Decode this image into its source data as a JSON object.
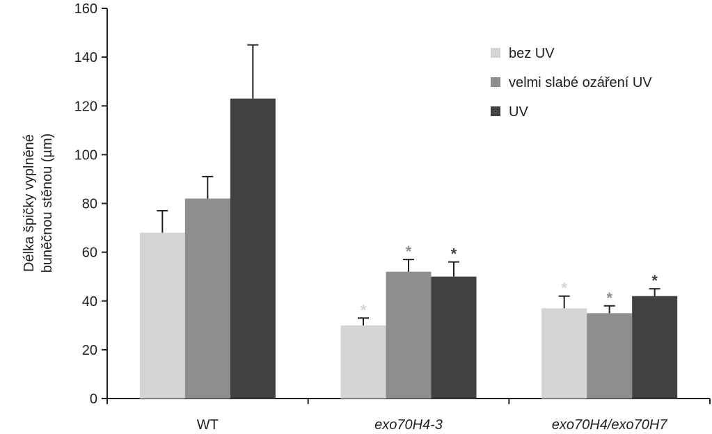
{
  "chart_data": {
    "type": "bar",
    "ylabel_lines": [
      "Délka špičky vyplněné",
      "buněčnou stěnou (µm)"
    ],
    "ylim": [
      0,
      160
    ],
    "yticks": [
      0,
      20,
      40,
      60,
      80,
      100,
      120,
      140,
      160
    ],
    "categories": [
      "WT",
      "exo70H4-3",
      "exo70H4/exo70H7"
    ],
    "category_italic": [
      false,
      true,
      true
    ],
    "legend_position": "top-right",
    "series": [
      {
        "name": "bez UV",
        "color": "#d4d4d4",
        "values": [
          68,
          30,
          37
        ],
        "errors": [
          9,
          3,
          5
        ],
        "significance": [
          "",
          "*",
          "*"
        ]
      },
      {
        "name": "velmi slabé ozáření UV",
        "color": "#8e8e8e",
        "values": [
          82,
          52,
          35
        ],
        "errors": [
          9,
          5,
          3
        ],
        "significance": [
          "",
          "*",
          "*"
        ]
      },
      {
        "name": "UV",
        "color": "#424041",
        "values": [
          123,
          50,
          42
        ],
        "errors": [
          22,
          6,
          3
        ],
        "significance": [
          "",
          "*",
          "*"
        ]
      }
    ]
  }
}
